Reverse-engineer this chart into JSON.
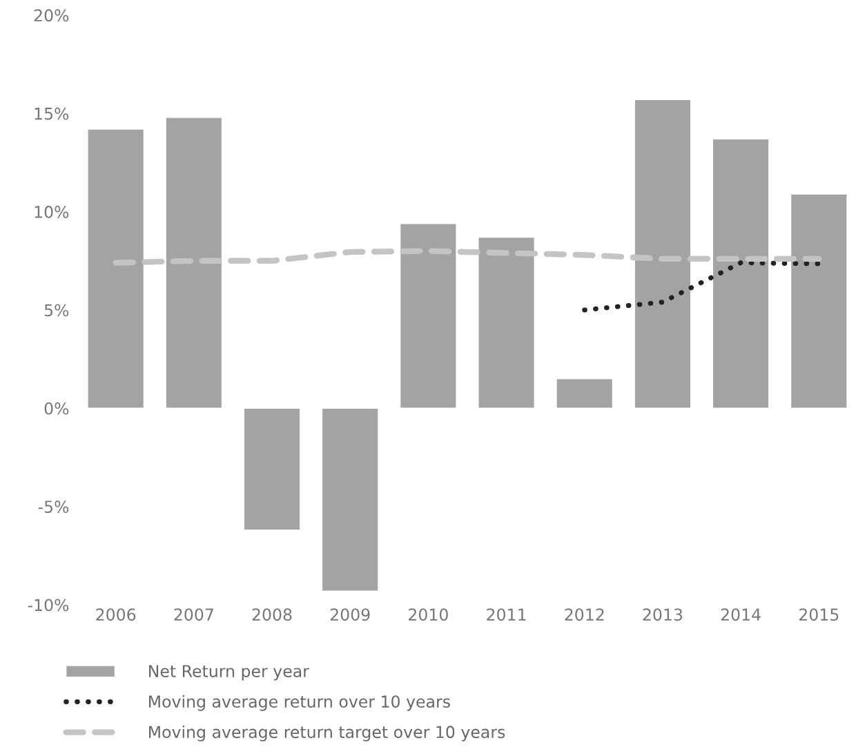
{
  "chart_data": {
    "type": "bar",
    "categories": [
      "2006",
      "2007",
      "2008",
      "2009",
      "2010",
      "2011",
      "2012",
      "2013",
      "2014",
      "2015"
    ],
    "series": [
      {
        "name": "Net Return per year",
        "color": "#a3a3a3",
        "values": [
          14.2,
          14.8,
          -6.2,
          -9.3,
          9.4,
          8.7,
          1.5,
          15.7,
          13.7,
          10.9
        ]
      },
      {
        "name": "Moving average return over 10 years",
        "type": "line",
        "line_style": "dotted",
        "color": "#222222",
        "values": [
          null,
          null,
          null,
          null,
          null,
          null,
          5.0,
          5.4,
          7.4,
          7.35
        ]
      },
      {
        "name": "Moving average return target over 10 years",
        "type": "line",
        "line_style": "dashed",
        "color": "#c4c4c4",
        "values": [
          7.4,
          7.5,
          7.5,
          7.95,
          8.0,
          7.9,
          7.8,
          7.6,
          7.6,
          7.6
        ]
      }
    ],
    "ylim": [
      -10,
      20
    ],
    "yticks": [
      {
        "value": -10,
        "label": "-10%"
      },
      {
        "value": -5,
        "label": "-5%"
      },
      {
        "value": 0,
        "label": "0%"
      },
      {
        "value": 5,
        "label": "5%"
      },
      {
        "value": 10,
        "label": "10%"
      },
      {
        "value": 15,
        "label": "15%"
      },
      {
        "value": 20,
        "label": "20%"
      }
    ],
    "grid": false,
    "legend": "bottom"
  }
}
